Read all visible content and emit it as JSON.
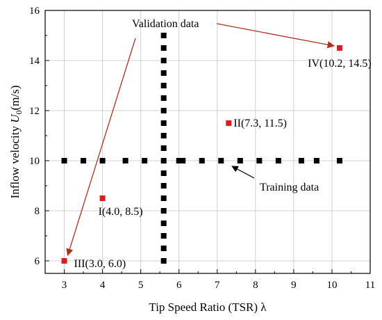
{
  "chart_data": {
    "type": "scatter",
    "title": "",
    "xlabel": "Tip Speed Ratio (TSR) λ",
    "ylabel": {
      "main": "Inflow velocity ",
      "symbol": "U",
      "subscript": "0",
      "unit": "(m/s)"
    },
    "xlim": [
      2.5,
      11
    ],
    "ylim": [
      5.5,
      16
    ],
    "xticks": [
      3,
      4,
      5,
      6,
      7,
      8,
      9,
      10,
      11
    ],
    "yticks": [
      6,
      8,
      10,
      12,
      14,
      16
    ],
    "grid": true,
    "colors": {
      "training": "#000000",
      "validation": "#d62020",
      "arrow": "#a8321e",
      "grid": "#cfcfcf"
    },
    "training_points": [
      [
        3.0,
        10
      ],
      [
        3.5,
        10
      ],
      [
        4.0,
        10
      ],
      [
        4.6,
        10
      ],
      [
        5.1,
        10
      ],
      [
        5.6,
        10
      ],
      [
        6.0,
        10
      ],
      [
        6.1,
        10
      ],
      [
        6.6,
        10
      ],
      [
        7.1,
        10
      ],
      [
        7.6,
        10
      ],
      [
        8.1,
        10
      ],
      [
        8.6,
        10
      ],
      [
        9.2,
        10
      ],
      [
        9.6,
        10
      ],
      [
        10.2,
        10
      ],
      [
        5.6,
        6.0
      ],
      [
        5.6,
        6.5
      ],
      [
        5.6,
        7.0
      ],
      [
        5.6,
        7.5
      ],
      [
        5.6,
        8.0
      ],
      [
        5.6,
        8.5
      ],
      [
        5.6,
        9.0
      ],
      [
        5.6,
        9.5
      ],
      [
        5.6,
        10.5
      ],
      [
        5.6,
        11.0
      ],
      [
        5.6,
        11.5
      ],
      [
        5.6,
        12.0
      ],
      [
        5.6,
        12.5
      ],
      [
        5.6,
        13.0
      ],
      [
        5.6,
        13.5
      ],
      [
        5.6,
        14.0
      ],
      [
        5.6,
        14.5
      ],
      [
        5.6,
        15.0
      ]
    ],
    "validation_points": [
      {
        "label": "I(4.0, 8.5)",
        "x": 4.0,
        "y": 8.5
      },
      {
        "label": "II(7.3, 11.5)",
        "x": 7.3,
        "y": 11.5
      },
      {
        "label": "III(3.0, 6.0)",
        "x": 3.0,
        "y": 6.0
      },
      {
        "label": "IV(10.2, 14.5)",
        "x": 10.2,
        "y": 14.5
      }
    ],
    "annotations": [
      {
        "text": "Validation data"
      },
      {
        "text": "Training data"
      }
    ]
  }
}
